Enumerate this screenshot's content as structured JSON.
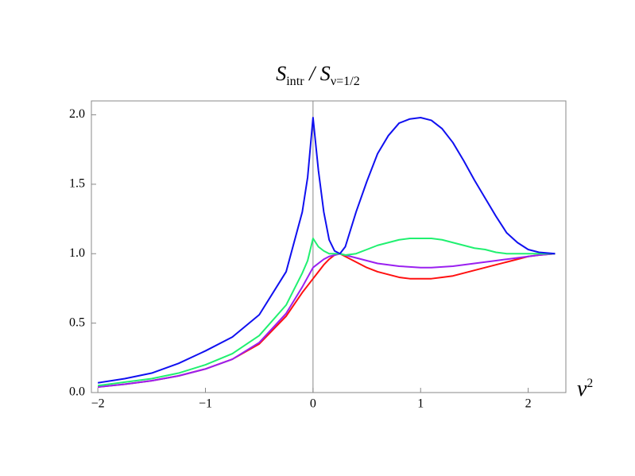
{
  "chart_data": {
    "type": "line",
    "title": [
      {
        "text": "S"
      },
      {
        "text": "intr",
        "sub": true
      },
      {
        "text": " / S"
      },
      {
        "text": "ν=1/2",
        "sub": true
      }
    ],
    "x_label": [
      {
        "text": "ν",
        "italic": true
      },
      {
        "text": "2",
        "sup": true
      }
    ],
    "x": [
      -2,
      -1.75,
      -1.5,
      -1.25,
      -1,
      -0.75,
      -0.5,
      -0.25,
      -0.1,
      -0.05,
      0,
      0.05,
      0.1,
      0.15,
      0.2,
      0.25,
      0.3,
      0.4,
      0.5,
      0.6,
      0.7,
      0.8,
      0.9,
      1.0,
      1.1,
      1.2,
      1.3,
      1.4,
      1.5,
      1.6,
      1.7,
      1.8,
      1.9,
      2.0,
      2.1,
      2.25
    ],
    "series": [
      {
        "color": "#ff1010",
        "values": [
          0.04,
          0.06,
          0.085,
          0.12,
          0.17,
          0.24,
          0.35,
          0.55,
          0.72,
          0.77,
          0.82,
          0.87,
          0.92,
          0.96,
          0.99,
          1.0,
          0.98,
          0.94,
          0.9,
          0.87,
          0.85,
          0.83,
          0.82,
          0.82,
          0.82,
          0.83,
          0.84,
          0.86,
          0.88,
          0.9,
          0.92,
          0.94,
          0.96,
          0.98,
          0.99,
          1.0
        ]
      },
      {
        "color": "#9a20f0",
        "values": [
          0.04,
          0.06,
          0.085,
          0.12,
          0.17,
          0.24,
          0.36,
          0.57,
          0.76,
          0.83,
          0.9,
          0.93,
          0.96,
          0.98,
          0.99,
          1.0,
          0.99,
          0.97,
          0.95,
          0.93,
          0.92,
          0.91,
          0.905,
          0.9,
          0.9,
          0.905,
          0.91,
          0.92,
          0.93,
          0.94,
          0.95,
          0.96,
          0.97,
          0.98,
          0.99,
          1.0
        ]
      },
      {
        "color": "#20f070",
        "values": [
          0.05,
          0.075,
          0.1,
          0.14,
          0.2,
          0.28,
          0.41,
          0.63,
          0.86,
          0.95,
          1.11,
          1.05,
          1.02,
          1.0,
          1.0,
          1.0,
          0.99,
          1.0,
          1.03,
          1.06,
          1.08,
          1.1,
          1.11,
          1.11,
          1.11,
          1.1,
          1.08,
          1.06,
          1.04,
          1.03,
          1.01,
          1.0,
          1.0,
          1.0,
          1.0,
          1.0
        ]
      },
      {
        "color": "#1010f0",
        "values": [
          0.07,
          0.1,
          0.14,
          0.21,
          0.3,
          0.4,
          0.56,
          0.87,
          1.3,
          1.55,
          1.98,
          1.6,
          1.3,
          1.1,
          1.02,
          1.0,
          1.05,
          1.3,
          1.52,
          1.72,
          1.85,
          1.94,
          1.97,
          1.98,
          1.96,
          1.9,
          1.8,
          1.67,
          1.53,
          1.4,
          1.27,
          1.15,
          1.08,
          1.03,
          1.01,
          1.0
        ]
      }
    ],
    "xlim": [
      -2.06,
      2.35
    ],
    "ylim": [
      0,
      2.1
    ],
    "xticks": [
      {
        "value": -2,
        "label": "−2"
      },
      {
        "value": -1,
        "label": "−1"
      },
      0,
      1,
      2
    ],
    "yticks": [
      {
        "value": 0,
        "label": "0.0"
      },
      0.5,
      {
        "value": 1,
        "label": "1.0"
      },
      1.5,
      {
        "value": 2,
        "label": "2.0"
      }
    ],
    "grid": false
  }
}
